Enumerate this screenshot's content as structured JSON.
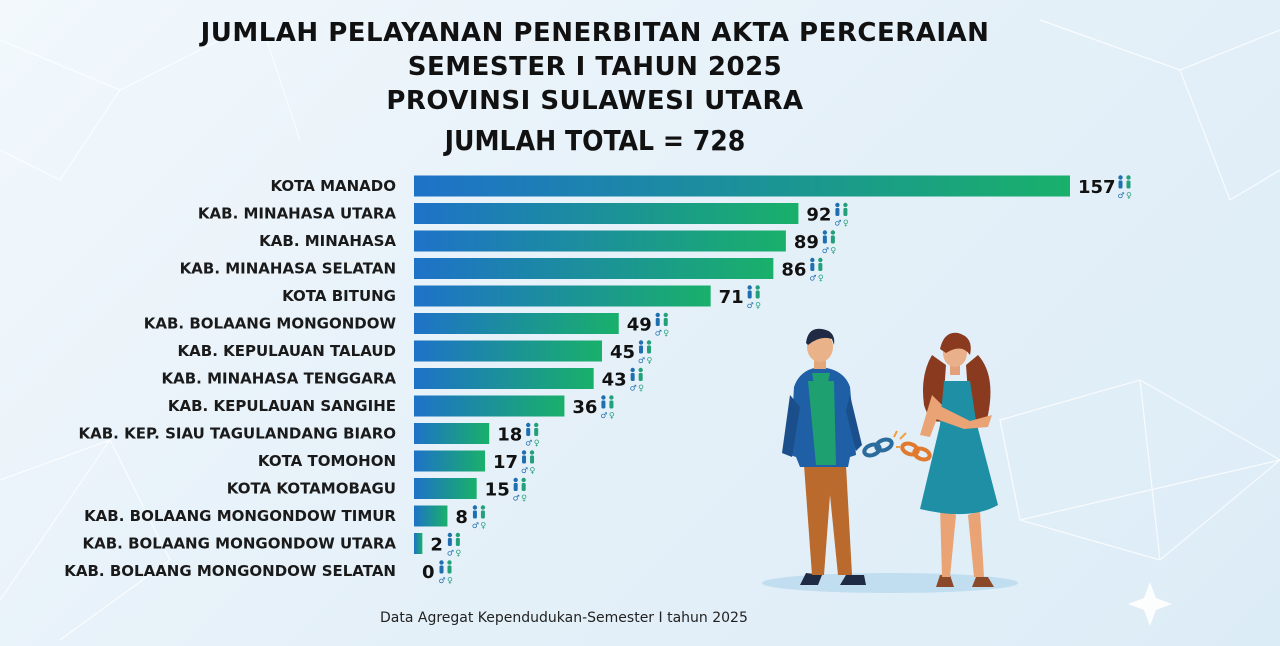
{
  "header": {
    "title_line1": "JUMLAH PELAYANAN PENERBITAN AKTA PERCERAIAN",
    "title_line2": "SEMESTER I TAHUN 2025",
    "title_line3": "PROVINSI SULAWESI UTARA",
    "total": "JUMLAH TOTAL = 728"
  },
  "footer": {
    "source": "Data Agregat Kependudukan-Semester I tahun 2025"
  },
  "colors": {
    "bar_start": "#1e72c8",
    "bar_end": "#19b06a",
    "icon_male": "#1f6fb0",
    "icon_female": "#22a079"
  },
  "icons": {
    "per_bar": "male-female-icon",
    "illustration": "separated-couple-broken-chain"
  },
  "chart_data": {
    "type": "bar",
    "orientation": "horizontal",
    "categories": [
      "KOTA MANADO",
      "KAB. MINAHASA UTARA",
      "KAB. MINAHASA",
      "KAB. MINAHASA SELATAN",
      "KOTA BITUNG",
      "KAB. BOLAANG MONGONDOW",
      "KAB. KEPULAUAN TALAUD",
      "KAB. MINAHASA TENGGARA",
      "KAB. KEPULAUAN SANGIHE",
      "KAB. KEP. SIAU TAGULANDANG BIARO",
      "KOTA TOMOHON",
      "KOTA KOTAMOBAGU",
      "KAB. BOLAANG MONGONDOW TIMUR",
      "KAB. BOLAANG MONGONDOW UTARA",
      "KAB. BOLAANG MONGONDOW SELATAN"
    ],
    "values": [
      157,
      92,
      89,
      86,
      71,
      49,
      45,
      43,
      36,
      18,
      17,
      15,
      8,
      2,
      0
    ],
    "xlim": [
      0,
      157
    ],
    "grid": false,
    "legend": "none"
  }
}
